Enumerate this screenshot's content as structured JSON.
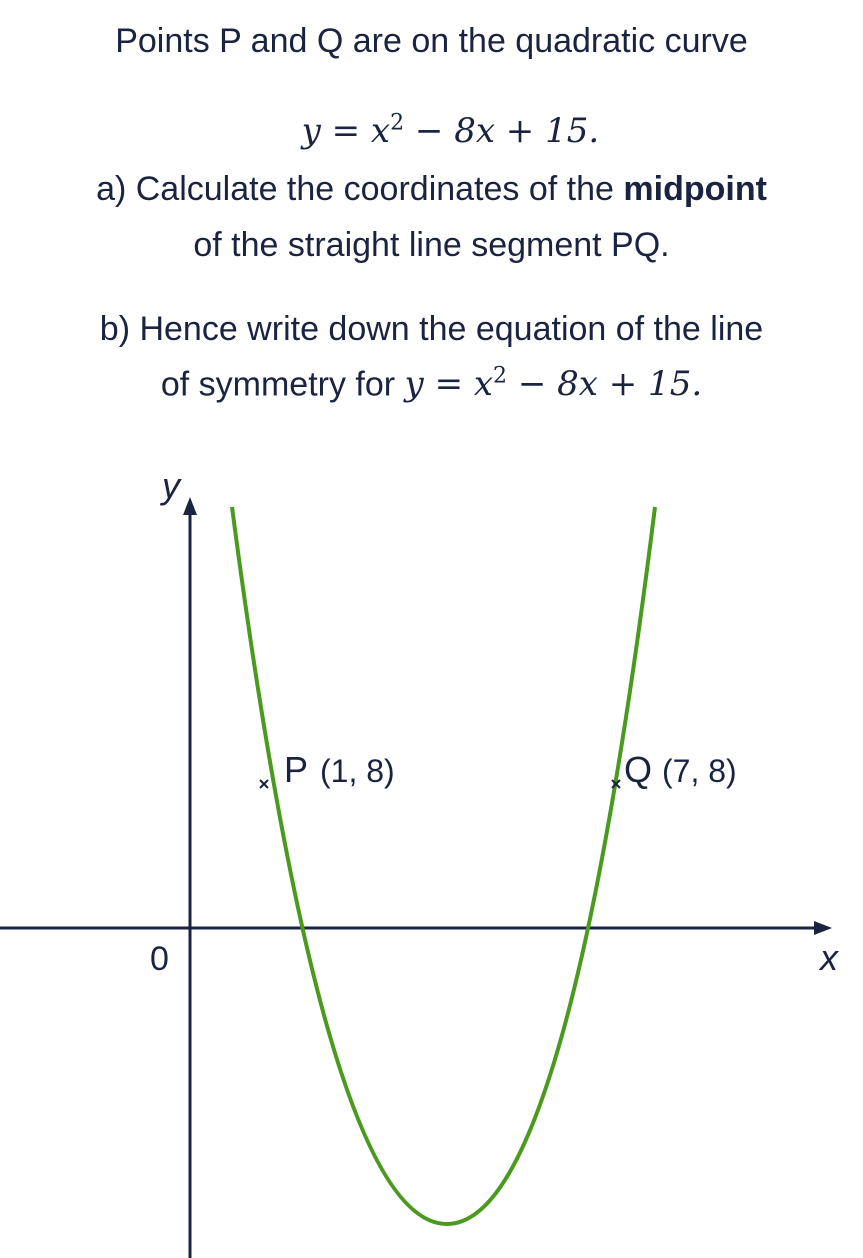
{
  "question": {
    "intro": "Points P and Q are on the quadratic curve",
    "equation": {
      "before": "y = x",
      "exponent": "2",
      "after": " − 8x + 15."
    },
    "part_a": {
      "line1_start": "a) Calculate the coordinates of the ",
      "line1_bold": "midpoint",
      "line2": "of the straight line segment PQ."
    },
    "part_b": {
      "line1": "b) Hence write down the equation of the line",
      "line2_start": "of symmetry for "
    }
  },
  "graph": {
    "y_label": "y",
    "x_label": "x",
    "origin": "0",
    "points": [
      {
        "name": "P",
        "coords": "(1, 8)"
      },
      {
        "name": "Q",
        "coords": "(7, 8)"
      }
    ]
  }
}
